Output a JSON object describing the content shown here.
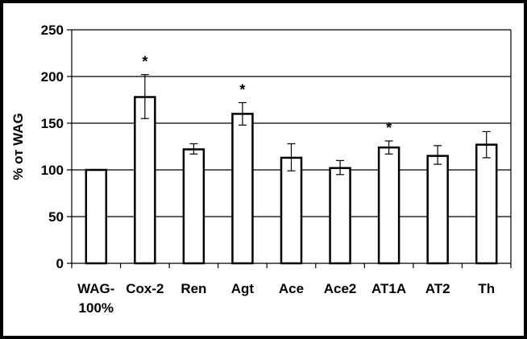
{
  "chart_data": {
    "type": "bar",
    "ylabel": "% от WAG",
    "xlabel": "",
    "title": "",
    "ylim": [
      0,
      250
    ],
    "yticks": [
      0,
      50,
      100,
      150,
      200,
      250
    ],
    "grid": true,
    "categories": [
      {
        "line1": "WAG-",
        "line2": "100%"
      },
      {
        "line1": "Cox-2"
      },
      {
        "line1": "Ren"
      },
      {
        "line1": "Agt"
      },
      {
        "line1": "Ace"
      },
      {
        "line1": "Ace2"
      },
      {
        "line1": "AT1A"
      },
      {
        "line1": "AT2"
      },
      {
        "line1": "Th"
      }
    ],
    "values": [
      100,
      178,
      122,
      160,
      113,
      102,
      124,
      115,
      127
    ],
    "error_low": [
      null,
      155,
      117,
      148,
      99,
      95,
      117,
      106,
      113
    ],
    "error_high": [
      null,
      202,
      128,
      172,
      128,
      110,
      131,
      126,
      141
    ],
    "significant": [
      false,
      true,
      false,
      true,
      false,
      false,
      true,
      false,
      false
    ],
    "significance_marker": "*",
    "colors": {
      "bar_fill": "#ffffff",
      "bar_stroke": "#000000",
      "background": "#ffffff",
      "frame": "#000000"
    }
  }
}
